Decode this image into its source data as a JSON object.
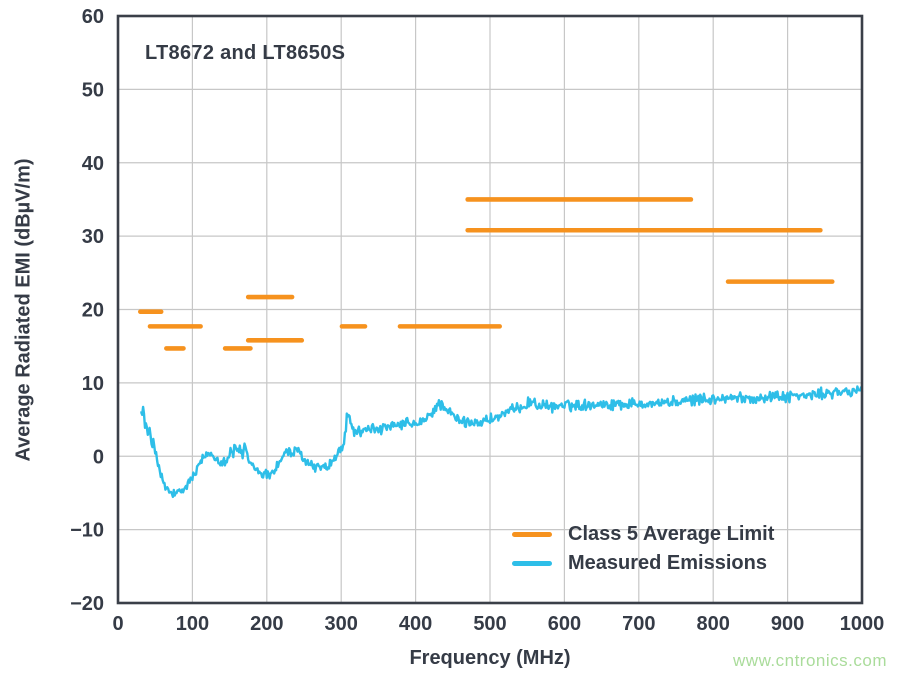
{
  "watermark": "www.cntronics.com",
  "colors": {
    "limit_orange": "#F6921E",
    "emissions_cyan": "#2EBEE8",
    "text_dark": "#353B46",
    "grid_gray": "#C7C7C7",
    "border_dark": "#3A3F48",
    "watermark_green": "#AADC9B",
    "background": "#FFFFFF"
  },
  "chart_data": {
    "type": "line",
    "title": "LT8672 and LT8650S",
    "xlabel": "Frequency (MHz)",
    "ylabel": "Average Radiated EMI (dBµV/m)",
    "xlim": [
      0,
      1000
    ],
    "ylim": [
      -20,
      60
    ],
    "x_ticks": [
      0,
      100,
      200,
      300,
      400,
      500,
      600,
      700,
      800,
      900,
      1000
    ],
    "y_ticks": [
      -20,
      -10,
      0,
      10,
      20,
      30,
      40,
      50,
      60
    ],
    "grid": true,
    "legend_position": "inside-bottom-right",
    "series": [
      {
        "name": "Class 5 Average Limit",
        "type": "segments",
        "color": "#F6921E",
        "segments": [
          {
            "f1": 30,
            "f2": 58,
            "level": 19.7
          },
          {
            "f1": 43,
            "f2": 111,
            "level": 17.7
          },
          {
            "f1": 65,
            "f2": 88,
            "level": 14.7
          },
          {
            "f1": 144,
            "f2": 178,
            "level": 14.7
          },
          {
            "f1": 175,
            "f2": 234,
            "level": 21.7
          },
          {
            "f1": 175,
            "f2": 247,
            "level": 15.8
          },
          {
            "f1": 301,
            "f2": 332,
            "level": 17.7
          },
          {
            "f1": 379,
            "f2": 513,
            "level": 17.7
          },
          {
            "f1": 470,
            "f2": 770,
            "level": 35.0
          },
          {
            "f1": 470,
            "f2": 944,
            "level": 30.8
          },
          {
            "f1": 820,
            "f2": 960,
            "level": 23.8
          }
        ]
      },
      {
        "name": "Measured Emissions",
        "type": "noisy-line",
        "color": "#2EBEE8",
        "noise_amplitude": 0.45,
        "points": [
          [
            30,
            6.8
          ],
          [
            32,
            5.2
          ],
          [
            34,
            6.9
          ],
          [
            36,
            4.0
          ],
          [
            38,
            4.6
          ],
          [
            40,
            2.6
          ],
          [
            43,
            3.4
          ],
          [
            46,
            1.2
          ],
          [
            48,
            2.8
          ],
          [
            50,
            0.6
          ],
          [
            53,
            -0.6
          ],
          [
            56,
            -2.2
          ],
          [
            60,
            -3.4
          ],
          [
            64,
            -4.3
          ],
          [
            68,
            -4.8
          ],
          [
            73,
            -5.1
          ],
          [
            78,
            -5.2
          ],
          [
            83,
            -5.0
          ],
          [
            88,
            -4.6
          ],
          [
            93,
            -3.9
          ],
          [
            98,
            -3.2
          ],
          [
            103,
            -2.4
          ],
          [
            108,
            -1.4
          ],
          [
            113,
            -0.6
          ],
          [
            118,
            0.2
          ],
          [
            123,
            0.4
          ],
          [
            128,
            0.1
          ],
          [
            133,
            -0.3
          ],
          [
            138,
            -0.7
          ],
          [
            143,
            -0.6
          ],
          [
            148,
            -0.2
          ],
          [
            152,
            0.9
          ],
          [
            155,
            0.2
          ],
          [
            158,
            1.7
          ],
          [
            161,
            0.4
          ],
          [
            164,
            1.2
          ],
          [
            167,
            -0.2
          ],
          [
            170,
            1.4
          ],
          [
            173,
            0.2
          ],
          [
            176,
            -0.6
          ],
          [
            180,
            -1.2
          ],
          [
            185,
            -1.7
          ],
          [
            190,
            -2.1
          ],
          [
            196,
            -2.4
          ],
          [
            202,
            -2.5
          ],
          [
            208,
            -2.1
          ],
          [
            214,
            -1.3
          ],
          [
            220,
            -0.3
          ],
          [
            225,
            0.5
          ],
          [
            230,
            0.7
          ],
          [
            235,
            0.2
          ],
          [
            240,
            0.8
          ],
          [
            245,
            0.3
          ],
          [
            250,
            -0.4
          ],
          [
            256,
            -0.9
          ],
          [
            262,
            -1.3
          ],
          [
            268,
            -1.5
          ],
          [
            274,
            -1.3
          ],
          [
            280,
            -1.6
          ],
          [
            286,
            -1.0
          ],
          [
            292,
            -0.2
          ],
          [
            298,
            0.8
          ],
          [
            303,
            1.6
          ],
          [
            306,
            3.0
          ],
          [
            308,
            6.5
          ],
          [
            310,
            5.2
          ],
          [
            313,
            4.2
          ],
          [
            317,
            3.6
          ],
          [
            322,
            3.3
          ],
          [
            328,
            3.4
          ],
          [
            335,
            3.7
          ],
          [
            342,
            3.8
          ],
          [
            350,
            3.6
          ],
          [
            358,
            3.8
          ],
          [
            366,
            3.9
          ],
          [
            374,
            4.1
          ],
          [
            382,
            4.3
          ],
          [
            390,
            4.5
          ],
          [
            398,
            4.3
          ],
          [
            406,
            4.5
          ],
          [
            414,
            5.0
          ],
          [
            420,
            5.6
          ],
          [
            426,
            6.6
          ],
          [
            431,
            7.1
          ],
          [
            436,
            7.0
          ],
          [
            441,
            6.5
          ],
          [
            447,
            5.8
          ],
          [
            453,
            5.2
          ],
          [
            459,
            4.8
          ],
          [
            466,
            4.6
          ],
          [
            473,
            4.6
          ],
          [
            481,
            4.7
          ],
          [
            489,
            4.7
          ],
          [
            497,
            4.9
          ],
          [
            505,
            5.2
          ],
          [
            513,
            5.4
          ],
          [
            521,
            5.8
          ],
          [
            530,
            6.2
          ],
          [
            538,
            6.5
          ],
          [
            546,
            7.0
          ],
          [
            553,
            7.4
          ],
          [
            558,
            7.4
          ],
          [
            564,
            7.0
          ],
          [
            572,
            6.8
          ],
          [
            580,
            6.7
          ],
          [
            590,
            6.9
          ],
          [
            600,
            7.0
          ],
          [
            612,
            6.9
          ],
          [
            624,
            7.0
          ],
          [
            636,
            7.1
          ],
          [
            648,
            7.2
          ],
          [
            660,
            7.0
          ],
          [
            672,
            7.2
          ],
          [
            684,
            7.1
          ],
          [
            696,
            7.2
          ],
          [
            708,
            7.3
          ],
          [
            720,
            7.2
          ],
          [
            732,
            7.4
          ],
          [
            744,
            7.3
          ],
          [
            756,
            7.4
          ],
          [
            768,
            7.6
          ],
          [
            780,
            7.8
          ],
          [
            792,
            7.7
          ],
          [
            804,
            7.8
          ],
          [
            816,
            7.9
          ],
          [
            828,
            7.9
          ],
          [
            840,
            8.0
          ],
          [
            852,
            7.9
          ],
          [
            864,
            8.0
          ],
          [
            876,
            8.1
          ],
          [
            888,
            8.2
          ],
          [
            900,
            8.1
          ],
          [
            912,
            8.3
          ],
          [
            924,
            8.2
          ],
          [
            936,
            8.4
          ],
          [
            948,
            8.5
          ],
          [
            960,
            8.6
          ],
          [
            972,
            8.7
          ],
          [
            984,
            8.8
          ],
          [
            1000,
            9.0
          ]
        ]
      }
    ]
  }
}
